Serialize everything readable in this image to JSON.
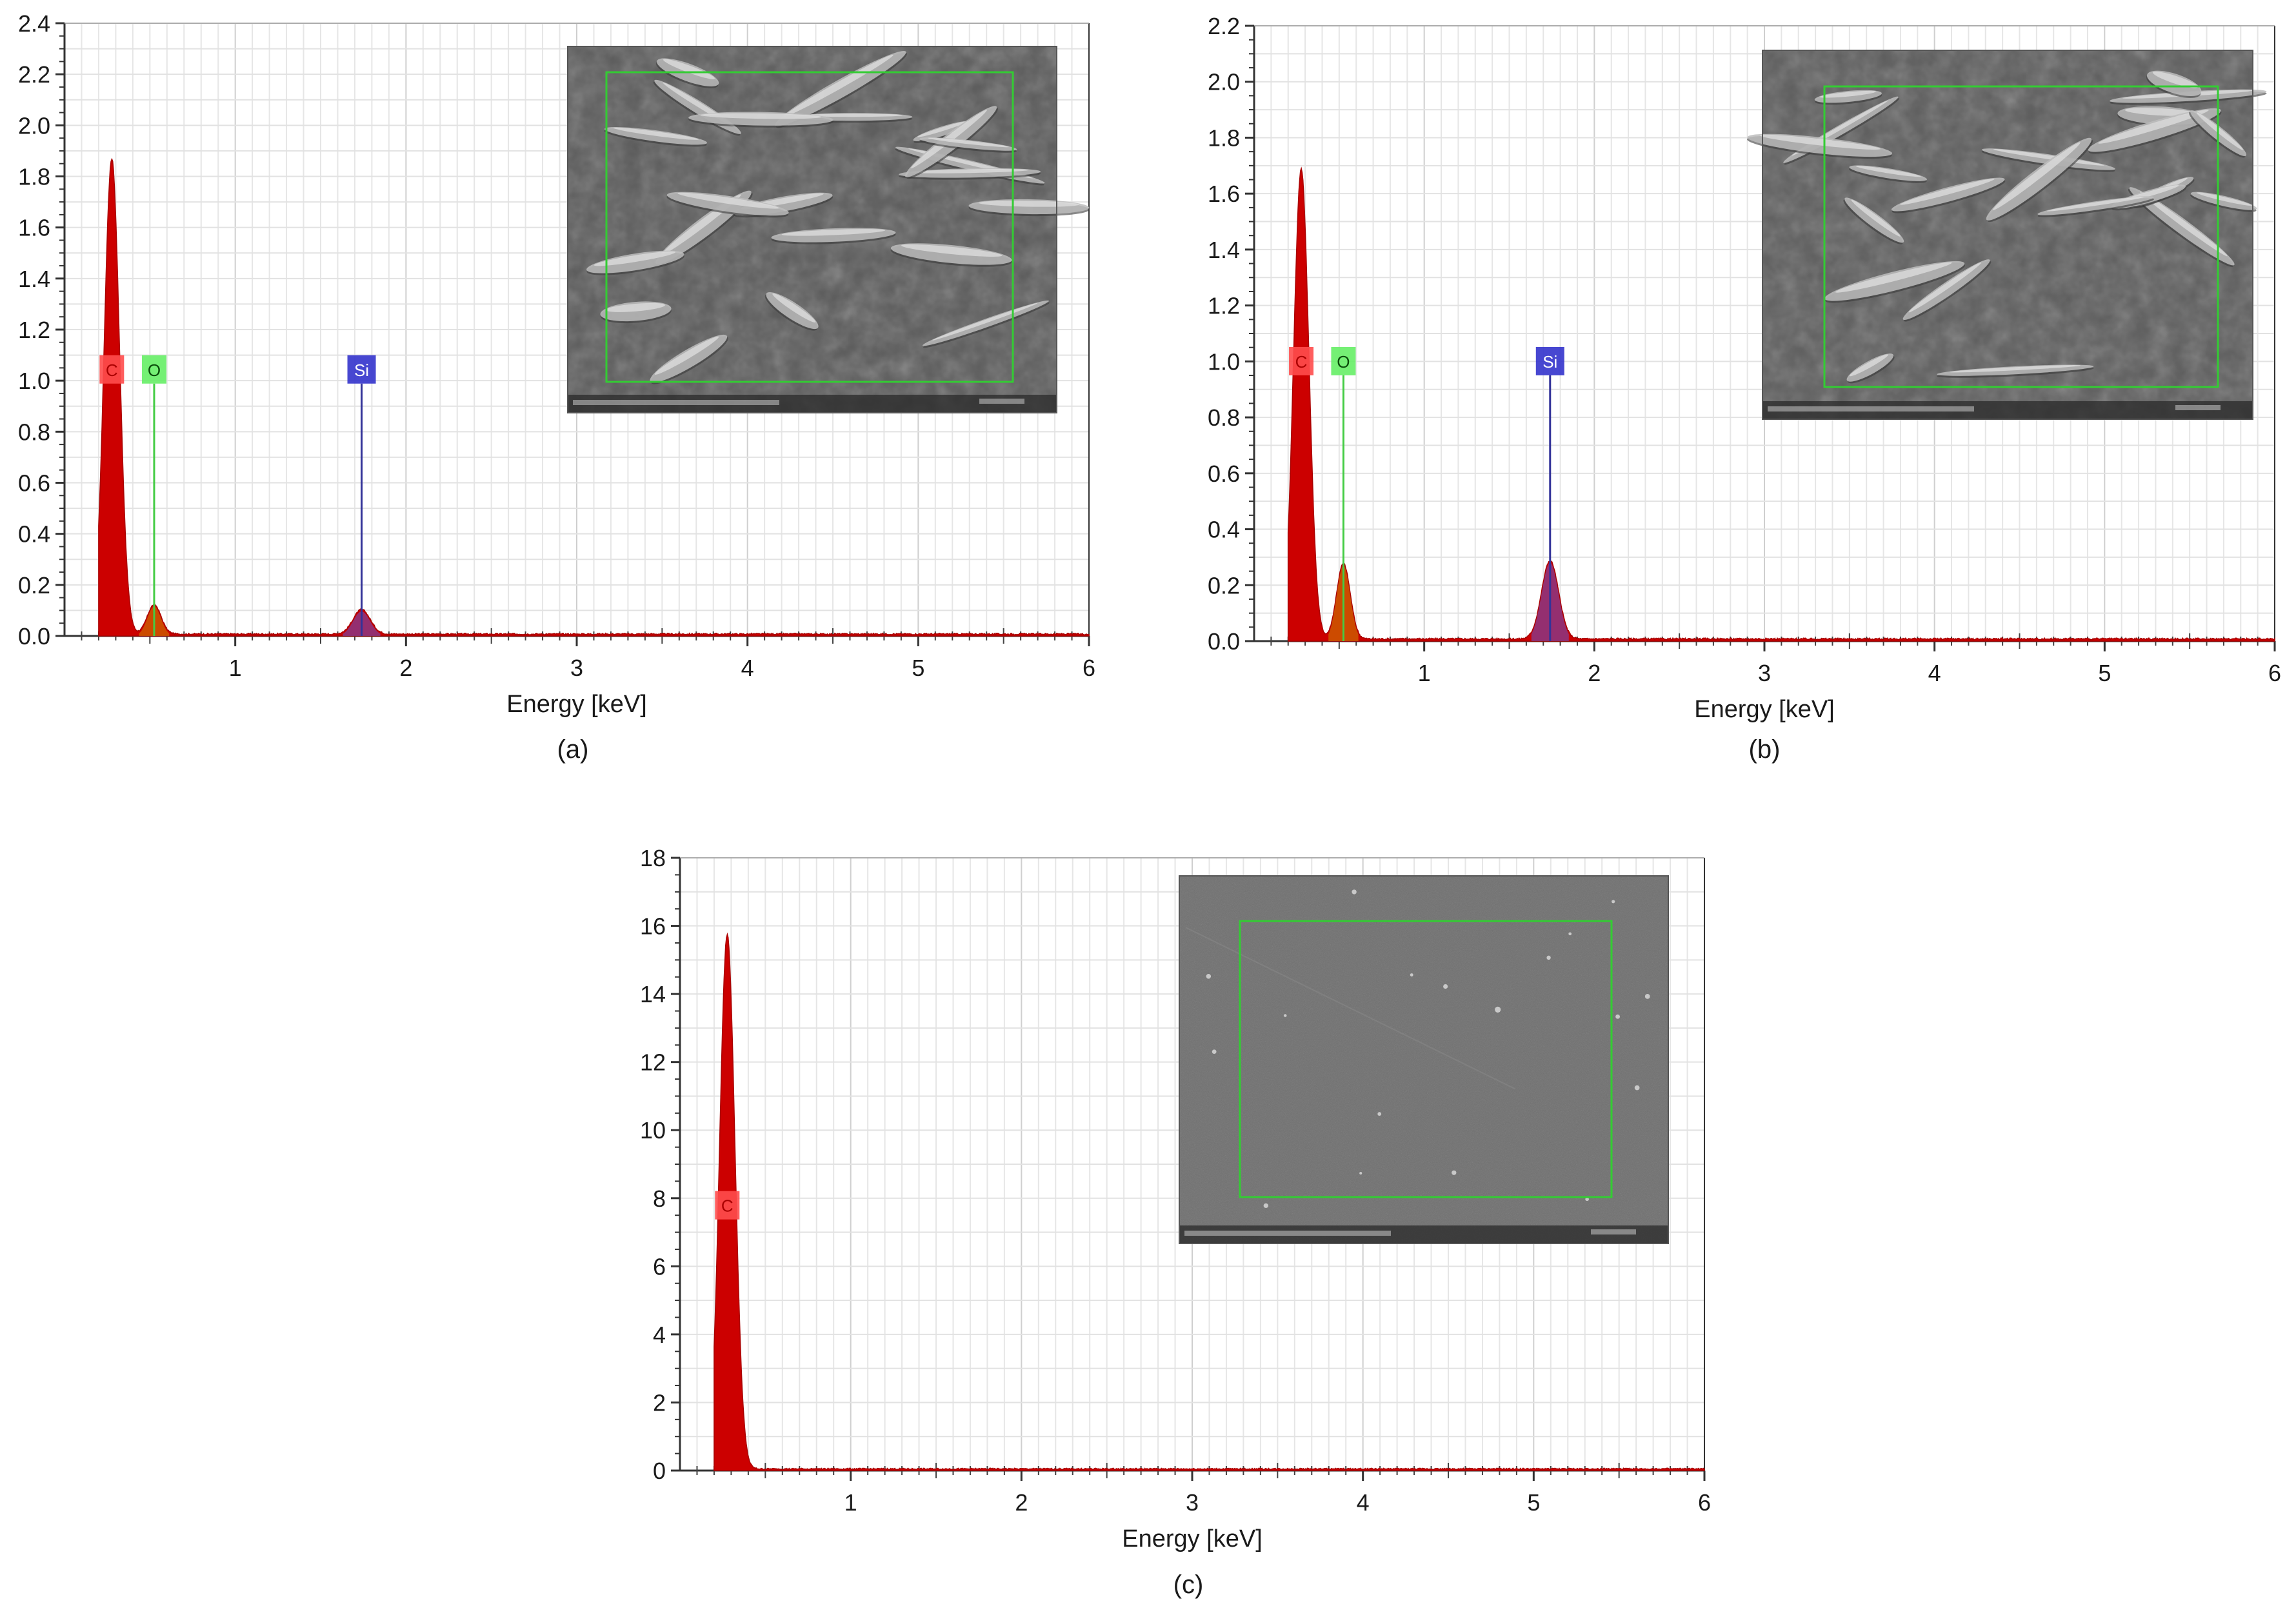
{
  "chart_data": [
    {
      "type": "area",
      "panel_caption": "(a)",
      "xlabel": "Energy [keV]",
      "ylabel": "",
      "xlim": [
        0,
        6
      ],
      "ylim": [
        0,
        2.5
      ],
      "xticks": [
        "1",
        "2",
        "3",
        "4",
        "5",
        "6"
      ],
      "yticks": [
        "0.0",
        "0.2",
        "0.4",
        "0.6",
        "0.8",
        "1.0",
        "1.2",
        "1.4",
        "1.6",
        "1.8",
        "2.0",
        "2.2",
        "2.4"
      ],
      "grid": true,
      "series_color": "#cc0000",
      "peaks": [
        {
          "element": "C",
          "energy": 0.277,
          "intensity": 1.94,
          "width": 0.045
        },
        {
          "element": "O",
          "energy": 0.525,
          "intensity": 0.12,
          "width": 0.04
        },
        {
          "element": "Si",
          "energy": 1.74,
          "intensity": 0.1,
          "width": 0.05
        }
      ],
      "baseline": 0.008,
      "element_labels": [
        {
          "symbol": "C",
          "energy": 0.277,
          "color": "#ff4d4d"
        },
        {
          "symbol": "O",
          "energy": 0.525,
          "color": "#66ee66",
          "line_color": "#44cc44"
        },
        {
          "symbol": "Si",
          "energy": 1.74,
          "color": "#3333cc",
          "line_color": "#333399"
        }
      ],
      "inset": {
        "description_alt": "SEM micrograph",
        "tone": "#5a5a5a"
      }
    },
    {
      "type": "area",
      "panel_caption": "(b)",
      "xlabel": "Energy [keV]",
      "ylabel": "",
      "xlim": [
        0,
        6
      ],
      "ylim": [
        0,
        2.2
      ],
      "xticks": [
        "1",
        "2",
        "3",
        "4",
        "5",
        "6"
      ],
      "yticks": [
        "0.0",
        "0.2",
        "0.4",
        "0.6",
        "0.8",
        "1.0",
        "1.2",
        "1.4",
        "1.6",
        "1.8",
        "2.0",
        "2.2"
      ],
      "grid": true,
      "series_color": "#cc0000",
      "peaks": [
        {
          "element": "C",
          "energy": 0.277,
          "intensity": 1.68,
          "width": 0.045
        },
        {
          "element": "O",
          "energy": 0.525,
          "intensity": 0.27,
          "width": 0.04
        },
        {
          "element": "Si",
          "energy": 1.74,
          "intensity": 0.28,
          "width": 0.05
        }
      ],
      "baseline": 0.008,
      "element_labels": [
        {
          "symbol": "C",
          "energy": 0.277,
          "color": "#ff4d4d"
        },
        {
          "symbol": "O",
          "energy": 0.525,
          "color": "#66ee66",
          "line_color": "#44cc44"
        },
        {
          "symbol": "Si",
          "energy": 1.74,
          "color": "#3333cc",
          "line_color": "#333399"
        }
      ],
      "inset": {
        "description_alt": "SEM micrograph",
        "tone": "#5c5c5c"
      }
    },
    {
      "type": "area",
      "panel_caption": "(c)",
      "xlabel": "Energy [keV]",
      "ylabel": "",
      "xlim": [
        0,
        6
      ],
      "ylim": [
        0,
        18
      ],
      "xticks": [
        "1",
        "2",
        "3",
        "4",
        "5",
        "6"
      ],
      "yticks": [
        "0",
        "2",
        "4",
        "6",
        "8",
        "10",
        "12",
        "14",
        "16",
        "18"
      ],
      "grid": true,
      "series_color": "#cc0000",
      "peaks": [
        {
          "element": "C",
          "energy": 0.277,
          "intensity": 15.7,
          "width": 0.045
        }
      ],
      "baseline": 0.05,
      "element_labels": [
        {
          "symbol": "C",
          "energy": 0.277,
          "color": "#ff4d4d"
        }
      ],
      "inset": {
        "description_alt": "SEM micrograph",
        "tone": "#707070"
      }
    }
  ]
}
